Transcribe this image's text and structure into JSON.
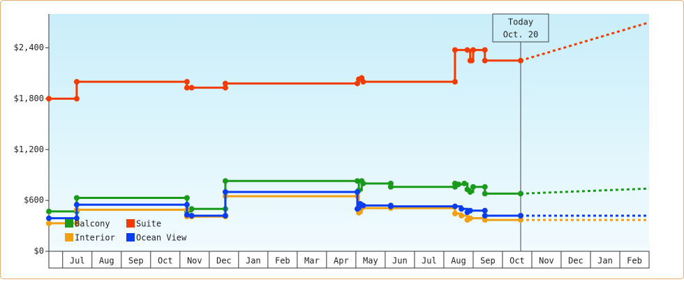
{
  "chart_data": {
    "type": "line",
    "step": true,
    "categories": [
      "Jul",
      "Aug",
      "Sep",
      "Oct",
      "Nov",
      "Dec",
      "Jan",
      "Feb",
      "Mar",
      "Apr",
      "May",
      "Jun",
      "Jul",
      "Aug",
      "Sep",
      "Oct",
      "Nov",
      "Dec",
      "Jan",
      "Feb"
    ],
    "xlim": [
      -0.47,
      20
    ],
    "ylim": [
      0,
      2800
    ],
    "yticks": [
      {
        "value": 0,
        "label": "$0"
      },
      {
        "value": 600,
        "label": "$600"
      },
      {
        "value": 1200,
        "label": "$1,200"
      },
      {
        "value": 1800,
        "label": "$1,800"
      },
      {
        "value": 2400,
        "label": "$2,400"
      }
    ],
    "legend": "lower left",
    "annotation": {
      "lines": [
        "Today",
        "Oct. 20"
      ],
      "x": 15.62
    },
    "forecast_x": [
      15.62,
      20
    ],
    "series": [
      {
        "name": "Balcony",
        "color": "#1a9a1a",
        "x": [
          -0.47,
          0.48,
          0.48,
          4.24,
          4.24,
          4.4,
          5.55,
          5.55,
          10.05,
          10.1,
          10.2,
          10.25,
          11.19,
          11.19,
          13.38,
          13.38,
          13.5,
          13.7,
          13.8,
          13.9,
          14.0,
          14.4,
          14.4,
          15.62
        ],
        "values": [
          470,
          470,
          630,
          630,
          470,
          500,
          500,
          830,
          830,
          720,
          830,
          800,
          800,
          760,
          760,
          800,
          790,
          800,
          730,
          700,
          760,
          760,
          680,
          680
        ],
        "forecast": [
          680,
          740
        ]
      },
      {
        "name": "Suite",
        "color": "#f03c00",
        "x": [
          -0.47,
          0.48,
          0.48,
          4.24,
          4.24,
          4.4,
          5.55,
          5.55,
          10.05,
          10.1,
          10.2,
          10.25,
          13.38,
          13.38,
          13.8,
          13.9,
          13.95,
          14.0,
          14.4,
          14.4,
          15.62
        ],
        "values": [
          1800,
          1800,
          2000,
          2000,
          1930,
          1930,
          1930,
          1980,
          1980,
          2030,
          2045,
          2000,
          2000,
          2375,
          2375,
          2250,
          2250,
          2375,
          2375,
          2250,
          2250
        ],
        "forecast": [
          2250,
          2700
        ]
      },
      {
        "name": "Interior",
        "color": "#f0a010",
        "x": [
          -0.47,
          0.48,
          0.48,
          4.24,
          4.24,
          4.4,
          5.55,
          5.55,
          10.05,
          10.1,
          10.2,
          11.19,
          13.38,
          13.6,
          13.8,
          13.9,
          14.4,
          15.62
        ],
        "values": [
          330,
          330,
          490,
          490,
          410,
          410,
          410,
          650,
          650,
          455,
          510,
          510,
          445,
          420,
          370,
          390,
          370,
          370
        ],
        "forecast": [
          370,
          370
        ]
      },
      {
        "name": "Ocean View",
        "color": "#0a3cf0",
        "x": [
          -0.47,
          0.48,
          0.48,
          4.24,
          4.24,
          4.4,
          5.55,
          5.55,
          10.05,
          10.05,
          10.15,
          10.25,
          11.19,
          11.19,
          13.38,
          13.6,
          13.8,
          13.9,
          14.4,
          14.4,
          15.62
        ],
        "values": [
          390,
          390,
          550,
          550,
          430,
          420,
          420,
          700,
          700,
          500,
          560,
          540,
          540,
          530,
          530,
          500,
          460,
          480,
          480,
          420,
          420
        ],
        "forecast": [
          420,
          420
        ]
      }
    ]
  }
}
